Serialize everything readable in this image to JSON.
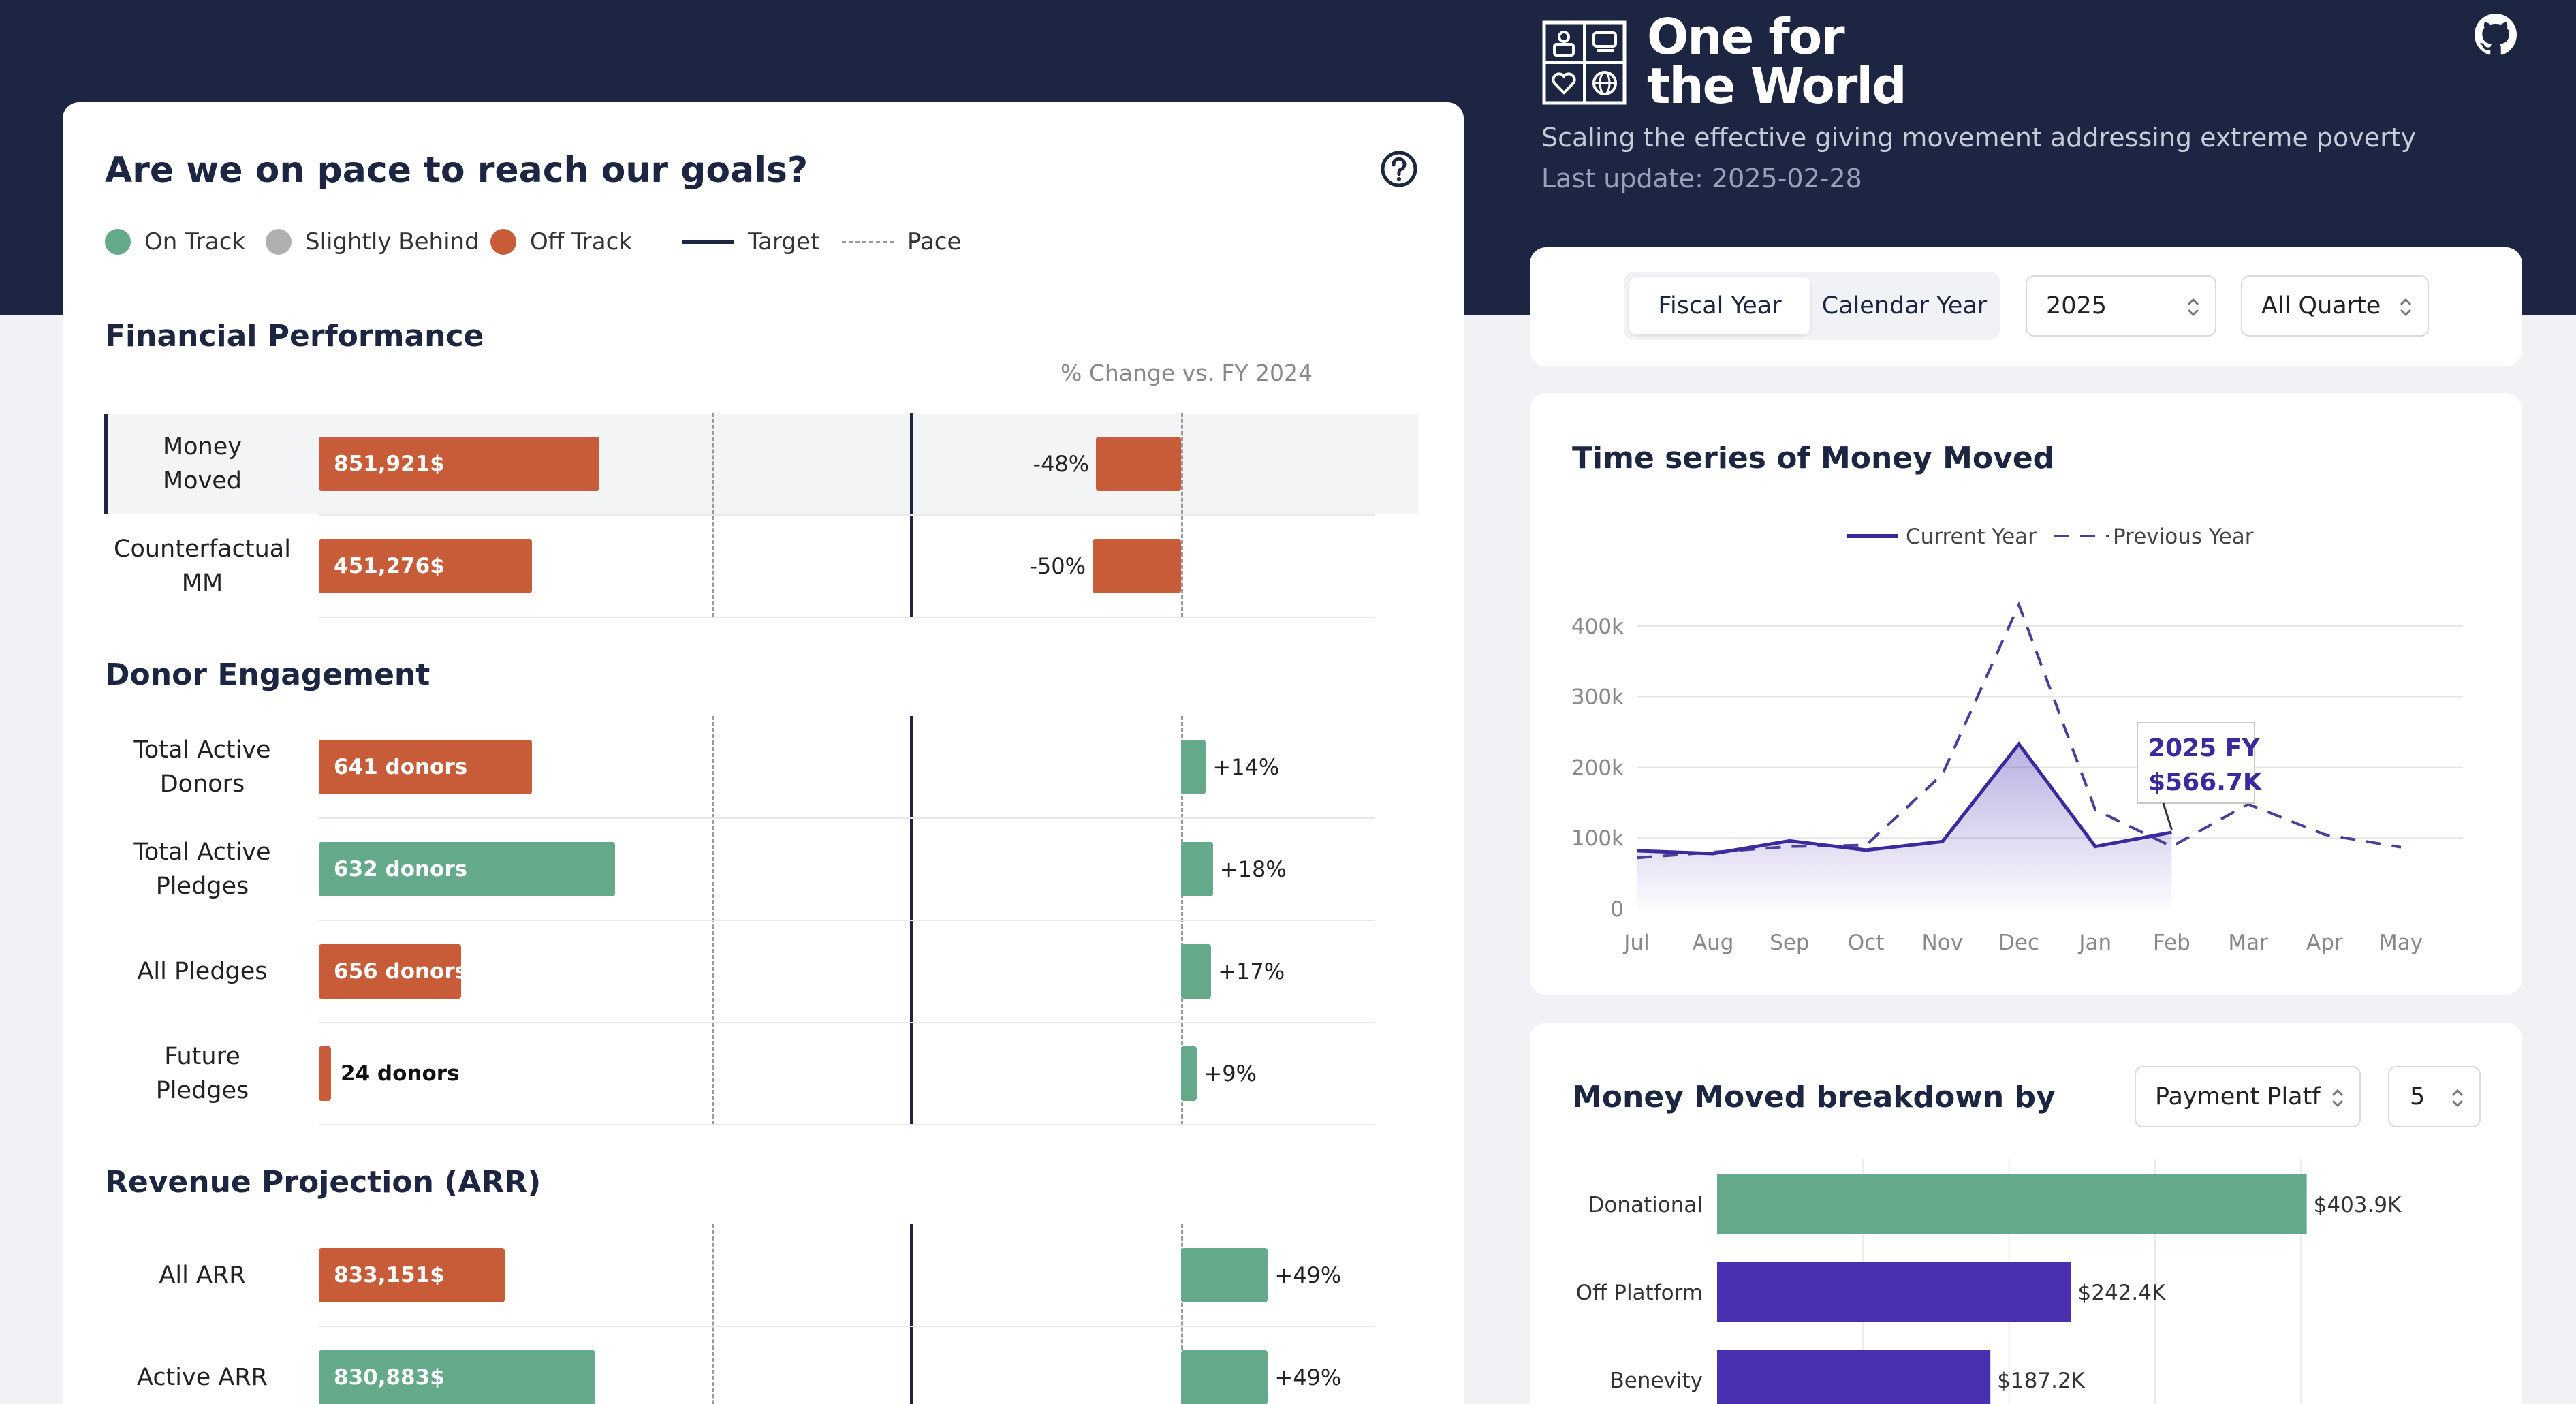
{
  "header": {
    "brand_line1": "One for",
    "brand_line2": "the World",
    "tagline": "Scaling the effective giving movement addressing extreme poverty",
    "last_update": "Last update: 2025-02-28",
    "github_icon": "github-icon"
  },
  "goals": {
    "title": "Are we on pace to reach our goals?",
    "help_icon": "help-circle-icon",
    "legend": {
      "on_track": "On Track",
      "slightly_behind": "Slightly Behind",
      "off_track": "Off Track",
      "target": "Target",
      "pace": "Pace"
    },
    "pct_change_header": "% Change vs. FY 2024",
    "sections": {
      "financial": "Financial Performance",
      "donor": "Donor Engagement",
      "revenue": "Revenue Projection (ARR)"
    },
    "rows": [
      {
        "label": "Money Moved",
        "value": "851,921$",
        "progress": 0.71,
        "status": "off_track",
        "pct": "-48%",
        "pct_value": -48
      },
      {
        "label": "Counterfactual MM",
        "value": "451,276$",
        "progress": 0.54,
        "status": "off_track",
        "pct": "-50%",
        "pct_value": -50
      },
      {
        "label": "Total Active Donors",
        "value": "641 donors",
        "progress": 0.54,
        "status": "off_track",
        "pct": "+14%",
        "pct_value": 14
      },
      {
        "label": "Total Active Pledges",
        "value": "632 donors",
        "progress": 0.75,
        "status": "on_track",
        "pct": "+18%",
        "pct_value": 18
      },
      {
        "label": "All Pledges",
        "value": "656 donors",
        "progress": 0.36,
        "status": "off_track",
        "pct": "+17%",
        "pct_value": 17
      },
      {
        "label": "Future Pledges",
        "value": "24 donors",
        "progress": 0.02,
        "status": "off_track",
        "pct": "+9%",
        "pct_value": 9
      },
      {
        "label": "All ARR",
        "value": "833,151$",
        "progress": 0.47,
        "status": "off_track",
        "pct": "+49%",
        "pct_value": 49
      },
      {
        "label": "Active ARR",
        "value": "830,883$",
        "progress": 0.7,
        "status": "on_track",
        "pct": "+49%",
        "pct_value": 49
      }
    ]
  },
  "filters": {
    "fiscal_year": "Fiscal Year",
    "calendar_year": "Calendar Year",
    "year": "2025",
    "quarter": "All Quarte"
  },
  "timeseries": {
    "title": "Time series of Money Moved"
  },
  "breakdown": {
    "title": "Money Moved breakdown by",
    "dimension": "Payment Platf",
    "top_n": "5"
  },
  "colors": {
    "navy": "#1c2541",
    "on_track": "#63a98a",
    "slightly_behind": "#b0b0b0",
    "off_track": "#c95c38",
    "purple": "#4a2fb0"
  },
  "chart_data": [
    {
      "type": "line",
      "title": "Time series of Money Moved",
      "x": [
        "Jul",
        "Aug",
        "Sep",
        "Oct",
        "Nov",
        "Dec",
        "Jan",
        "Feb",
        "Mar",
        "Apr",
        "May"
      ],
      "series": [
        {
          "name": "Current Year",
          "values": [
            82000,
            78000,
            96000,
            83000,
            95000,
            233000,
            88000,
            108000,
            null,
            null,
            null
          ]
        },
        {
          "name": "Previous Year",
          "values": [
            72000,
            80000,
            88000,
            90000,
            190000,
            430000,
            140000,
            88000,
            148000,
            105000,
            87000
          ]
        }
      ],
      "y_ticks": [
        "0",
        "100k",
        "200k",
        "300k",
        "400k"
      ],
      "ylim": [
        0,
        450000
      ],
      "tooltip": {
        "label": "2025 FY",
        "value": "$566.7K"
      },
      "legend_position": "top",
      "grid": true
    },
    {
      "type": "bar",
      "orientation": "horizontal",
      "categories": [
        "Donational",
        "Off Platform",
        "Benevity"
      ],
      "values": [
        403.9,
        242.4,
        187.2
      ],
      "value_labels": [
        "$403.9K",
        "$242.4K",
        "$187.2K"
      ],
      "unit": "K$",
      "xlim": [
        0,
        440
      ],
      "grid": true
    }
  ]
}
